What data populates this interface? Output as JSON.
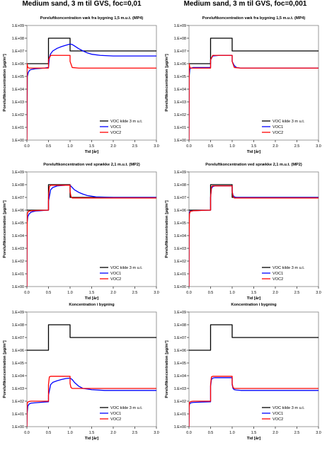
{
  "columns": [
    {
      "title": "Medium sand, 3 m til GVS, foc=0,01"
    },
    {
      "title": "Medium sand, 3 m til GVS, foc=0,001"
    }
  ],
  "colors": {
    "source": "#000000",
    "voc1": "#0000ff",
    "voc2": "#ff0000",
    "frame": "#808080"
  },
  "chart_data": [
    {
      "type": "line",
      "title": "Poreluftkoncentration væk fra bygning 1,5 m.u.t. (MP4)",
      "xlabel": "Tid [år]",
      "ylabel": "Poreluftkoncentration [µg/m³]",
      "xlim": [
        0,
        3.0
      ],
      "ylim": [
        1,
        1000000000
      ],
      "yscale": "log",
      "xticks": [
        "0.0",
        "0.5",
        "1.0",
        "1.5",
        "2.0",
        "2.5",
        "3.0"
      ],
      "yticks": [
        "1.E+00",
        "1.E+01",
        "1.E+02",
        "1.E+03",
        "1.E+04",
        "1.E+05",
        "1.E+06",
        "1.E+07",
        "1.E+08",
        "1.E+09"
      ],
      "legend_position": "bottom-right",
      "grid": false,
      "series": [
        {
          "name": "VOC kilde 3 m u.t.",
          "color": "#000000",
          "x": [
            0,
            0.5,
            0.5,
            1.0,
            1.0,
            3.0
          ],
          "y": [
            1000000,
            1000000,
            100000000,
            100000000,
            10000000,
            10000000
          ]
        },
        {
          "name": "VOC1",
          "color": "#0000ff",
          "x": [
            0,
            0.01,
            0.03,
            0.06,
            0.1,
            0.2,
            0.3,
            0.4,
            0.5,
            0.52,
            0.55,
            0.6,
            0.7,
            0.8,
            0.9,
            1.0,
            1.05,
            1.1,
            1.2,
            1.3,
            1.4,
            1.5,
            1.7,
            2.0,
            2.5,
            3.0
          ],
          "y": [
            1,
            100000,
            200000,
            300000,
            350000,
            400000,
            420000,
            450000,
            500000,
            3000000,
            6000000,
            10000000,
            16000000,
            22000000,
            28000000,
            35000000,
            32000000,
            25000000,
            15000000,
            10000000,
            7000000,
            5500000,
            4500000,
            4000000,
            4000000,
            4000000
          ]
        },
        {
          "name": "VOC2",
          "color": "#ff0000",
          "x": [
            0,
            0.005,
            0.02,
            0.05,
            0.1,
            0.3,
            0.5,
            0.5,
            0.55,
            1.0,
            1.0,
            1.05,
            1.2,
            3.0
          ],
          "y": [
            1,
            1000000,
            500000,
            450000,
            450000,
            450000,
            450000,
            2000000,
            4500000,
            4500000,
            1500000,
            500000,
            450000,
            450000
          ]
        }
      ]
    },
    {
      "type": "line",
      "title": "Poreluftkoncentration væk fra bygning 1,5 m.u.t. (MP4)",
      "xlabel": "Tid [år]",
      "ylabel": "Poreluftkoncentration [µg/m³]",
      "xlim": [
        0,
        3.0
      ],
      "ylim": [
        1,
        1000000000
      ],
      "yscale": "log",
      "xticks": [
        "0.0",
        "0.5",
        "1.0",
        "1.5",
        "2.0",
        "2.5",
        "3.0"
      ],
      "yticks": [
        "1.E+00",
        "1.E+01",
        "1.E+02",
        "1.E+03",
        "1.E+04",
        "1.E+05",
        "1.E+06",
        "1.E+07",
        "1.E+08",
        "1.E+09"
      ],
      "legend_position": "bottom-right",
      "grid": false,
      "series": [
        {
          "name": "VOC kilde 3 m u.t.",
          "color": "#000000",
          "x": [
            0,
            0.5,
            0.5,
            1.0,
            1.0,
            3.0
          ],
          "y": [
            1000000,
            1000000,
            100000000,
            100000000,
            10000000,
            10000000
          ]
        },
        {
          "name": "VOC1",
          "color": "#0000ff",
          "x": [
            0,
            0.005,
            0.02,
            0.05,
            0.1,
            0.3,
            0.5,
            0.5,
            0.55,
            0.7,
            1.0,
            1.0,
            1.05,
            1.1,
            1.2,
            1.4,
            3.0
          ],
          "y": [
            1,
            100000,
            400000,
            450000,
            500000,
            500000,
            500000,
            2000000,
            4000000,
            4500000,
            4500000,
            1500000,
            700000,
            500000,
            450000,
            450000,
            450000
          ]
        },
        {
          "name": "VOC2",
          "color": "#ff0000",
          "x": [
            0,
            0.005,
            0.02,
            0.05,
            0.1,
            0.3,
            0.5,
            0.5,
            0.55,
            1.0,
            1.0,
            1.05,
            1.2,
            3.0
          ],
          "y": [
            1,
            1000000,
            500000,
            450000,
            450000,
            450000,
            450000,
            2000000,
            4500000,
            4500000,
            1500000,
            500000,
            450000,
            450000
          ]
        }
      ]
    },
    {
      "type": "line",
      "title": "Poreluftkoncentration ved sprække 2,1 m.u.t. (MP2)",
      "xlabel": "Tid [år]",
      "ylabel": "Poreluftkoncentration [µg/m³]",
      "xlim": [
        0,
        3.0
      ],
      "ylim": [
        1,
        1000000000
      ],
      "yscale": "log",
      "xticks": [
        "0.0",
        "0.5",
        "1.0",
        "1.5",
        "2.0",
        "2.5",
        "3.0"
      ],
      "yticks": [
        "1.E+00",
        "1.E+01",
        "1.E+02",
        "1.E+03",
        "1.E+04",
        "1.E+05",
        "1.E+06",
        "1.E+07",
        "1.E+08",
        "1.E+09"
      ],
      "legend_position": "bottom-right",
      "grid": false,
      "series": [
        {
          "name": "VOC kilde 3 m u.t.",
          "color": "#000000",
          "x": [
            0,
            0.5,
            0.5,
            1.0,
            1.0,
            3.0
          ],
          "y": [
            1000000,
            1000000,
            100000000,
            100000000,
            10000000,
            10000000
          ]
        },
        {
          "name": "VOC1",
          "color": "#0000ff",
          "x": [
            0,
            0.005,
            0.02,
            0.05,
            0.1,
            0.2,
            0.3,
            0.4,
            0.5,
            0.5,
            0.55,
            0.6,
            0.7,
            0.8,
            0.9,
            1.0,
            1.05,
            1.1,
            1.2,
            1.3,
            1.4,
            1.6,
            2.0,
            3.0
          ],
          "y": [
            1,
            100000,
            300000,
            500000,
            700000,
            850000,
            900000,
            950000,
            1000000,
            5000000,
            40000000,
            60000000,
            80000000,
            85000000,
            90000000,
            90000000,
            60000000,
            40000000,
            25000000,
            18000000,
            14000000,
            11000000,
            10000000,
            10000000
          ]
        },
        {
          "name": "VOC2",
          "color": "#ff0000",
          "x": [
            0,
            0.003,
            0.01,
            0.03,
            0.1,
            0.3,
            0.5,
            0.5,
            0.52,
            0.55,
            1.0,
            1.0,
            1.02,
            1.05,
            3.0
          ],
          "y": [
            1,
            10000,
            500000,
            800000,
            900000,
            950000,
            1000000,
            10000000,
            70000000,
            90000000,
            90000000,
            30000000,
            12000000,
            9000000,
            9000000
          ]
        }
      ]
    },
    {
      "type": "line",
      "title": "Poreluftkoncentration ved sprække 2,1 m.u.t. (MP2)",
      "xlabel": "Tid [år]",
      "ylabel": "Poreluftkoncentration [µg/m³]",
      "xlim": [
        0,
        3.0
      ],
      "ylim": [
        1,
        1000000000
      ],
      "yscale": "log",
      "xticks": [
        "0.0",
        "0.5",
        "1.0",
        "1.5",
        "2.0",
        "2.5",
        "3.0"
      ],
      "yticks": [
        "1.E+00",
        "1.E+01",
        "1.E+02",
        "1.E+03",
        "1.E+04",
        "1.E+05",
        "1.E+06",
        "1.E+07",
        "1.E+08",
        "1.E+09"
      ],
      "legend_position": "bottom-right",
      "grid": false,
      "series": [
        {
          "name": "VOC kilde 3 m u.t.",
          "color": "#000000",
          "x": [
            0,
            0.5,
            0.5,
            1.0,
            1.0,
            3.0
          ],
          "y": [
            1000000,
            1000000,
            100000000,
            100000000,
            10000000,
            10000000
          ]
        },
        {
          "name": "VOC1",
          "color": "#0000ff",
          "x": [
            0,
            0.004,
            0.01,
            0.03,
            0.1,
            0.3,
            0.5,
            0.5,
            0.52,
            0.55,
            0.6,
            1.0,
            1.0,
            1.02,
            1.05,
            1.1,
            1.2,
            3.0
          ],
          "y": [
            1,
            100000,
            700000,
            850000,
            900000,
            950000,
            1000000,
            10000000,
            50000000,
            70000000,
            80000000,
            80000000,
            30000000,
            15000000,
            11000000,
            10000000,
            10000000,
            10000000
          ]
        },
        {
          "name": "VOC2",
          "color": "#ff0000",
          "x": [
            0,
            0.003,
            0.01,
            0.03,
            0.1,
            0.3,
            0.5,
            0.5,
            0.52,
            0.55,
            1.0,
            1.0,
            1.02,
            1.05,
            3.0
          ],
          "y": [
            1,
            10000,
            500000,
            800000,
            900000,
            950000,
            1000000,
            10000000,
            70000000,
            80000000,
            80000000,
            30000000,
            12000000,
            9000000,
            9000000
          ]
        }
      ]
    },
    {
      "type": "line",
      "title": "Koncentration i bygning",
      "xlabel": "Tid [år]",
      "ylabel": "Poreluftkoncentration [µg/m³]",
      "xlim": [
        0,
        3.0
      ],
      "ylim": [
        1,
        1000000000
      ],
      "yscale": "log",
      "xticks": [
        "0.0",
        "0.5",
        "1.0",
        "1.5",
        "2.0",
        "2.5",
        "3.0"
      ],
      "yticks": [
        "1.E+00",
        "1.E+01",
        "1.E+02",
        "1.E+03",
        "1.E+04",
        "1.E+05",
        "1.E+06",
        "1.E+07",
        "1.E+08",
        "1.E+09"
      ],
      "legend_position": "bottom-right",
      "grid": false,
      "series": [
        {
          "name": "VOC kilde 3 m u.t.",
          "color": "#000000",
          "x": [
            0,
            0.5,
            0.5,
            1.0,
            1.0,
            3.0
          ],
          "y": [
            1000000,
            1000000,
            100000000,
            100000000,
            10000000,
            10000000
          ]
        },
        {
          "name": "VOC1",
          "color": "#0000ff",
          "x": [
            0,
            0.005,
            0.02,
            0.05,
            0.1,
            0.2,
            0.3,
            0.4,
            0.5,
            0.5,
            0.55,
            0.6,
            0.7,
            0.8,
            0.9,
            1.0,
            1.05,
            1.1,
            1.2,
            1.3,
            1.5,
            1.8,
            2.2,
            3.0
          ],
          "y": [
            1,
            10,
            40,
            60,
            70,
            75,
            80,
            85,
            90,
            300,
            2000,
            3000,
            4000,
            5000,
            6000,
            6500,
            5000,
            3000,
            1500,
            1000,
            800,
            700,
            700,
            700
          ]
        },
        {
          "name": "VOC2",
          "color": "#ff0000",
          "x": [
            0,
            0.004,
            0.01,
            0.05,
            0.1,
            0.3,
            0.5,
            0.5,
            0.52,
            0.55,
            1.0,
            1.0,
            1.02,
            1.05,
            1.1,
            3.0
          ],
          "y": [
            1,
            30,
            80,
            95,
            100,
            100,
            100,
            2000,
            8000,
            9000,
            9000,
            2500,
            1200,
            1000,
            1000,
            1000
          ]
        }
      ]
    },
    {
      "type": "line",
      "title": "Koncentration i bygning",
      "xlabel": "Tid [år]",
      "ylabel": "Poreluftkoncentration [µg/m³]",
      "xlim": [
        0,
        3.0
      ],
      "ylim": [
        1,
        1000000000
      ],
      "yscale": "log",
      "xticks": [
        "0.0",
        "0.5",
        "1.0",
        "1.5",
        "2.0",
        "2.5",
        "3.0"
      ],
      "yticks": [
        "1.E+00",
        "1.E+01",
        "1.E+02",
        "1.E+03",
        "1.E+04",
        "1.E+05",
        "1.E+06",
        "1.E+07",
        "1.E+08",
        "1.E+09"
      ],
      "legend_position": "bottom-right",
      "grid": false,
      "series": [
        {
          "name": "VOC kilde 3 m u.t.",
          "color": "#000000",
          "x": [
            0,
            0.5,
            0.5,
            1.0,
            1.0,
            3.0
          ],
          "y": [
            1000000,
            1000000,
            100000000,
            100000000,
            10000000,
            10000000
          ]
        },
        {
          "name": "VOC1",
          "color": "#0000ff",
          "x": [
            0,
            0.004,
            0.01,
            0.05,
            0.1,
            0.3,
            0.5,
            0.5,
            0.52,
            0.55,
            0.6,
            1.0,
            1.0,
            1.02,
            1.05,
            1.1,
            1.2,
            3.0
          ],
          "y": [
            1,
            30,
            60,
            75,
            80,
            85,
            90,
            1500,
            5000,
            6500,
            7000,
            7000,
            2000,
            1000,
            800,
            750,
            700,
            700
          ]
        },
        {
          "name": "VOC2",
          "color": "#ff0000",
          "x": [
            0,
            0.004,
            0.01,
            0.05,
            0.1,
            0.3,
            0.5,
            0.5,
            0.52,
            0.55,
            1.0,
            1.0,
            1.02,
            1.05,
            1.1,
            3.0
          ],
          "y": [
            1,
            30,
            80,
            95,
            100,
            100,
            100,
            2000,
            8000,
            9000,
            9000,
            2500,
            1200,
            1000,
            1000,
            1000
          ]
        }
      ]
    }
  ]
}
